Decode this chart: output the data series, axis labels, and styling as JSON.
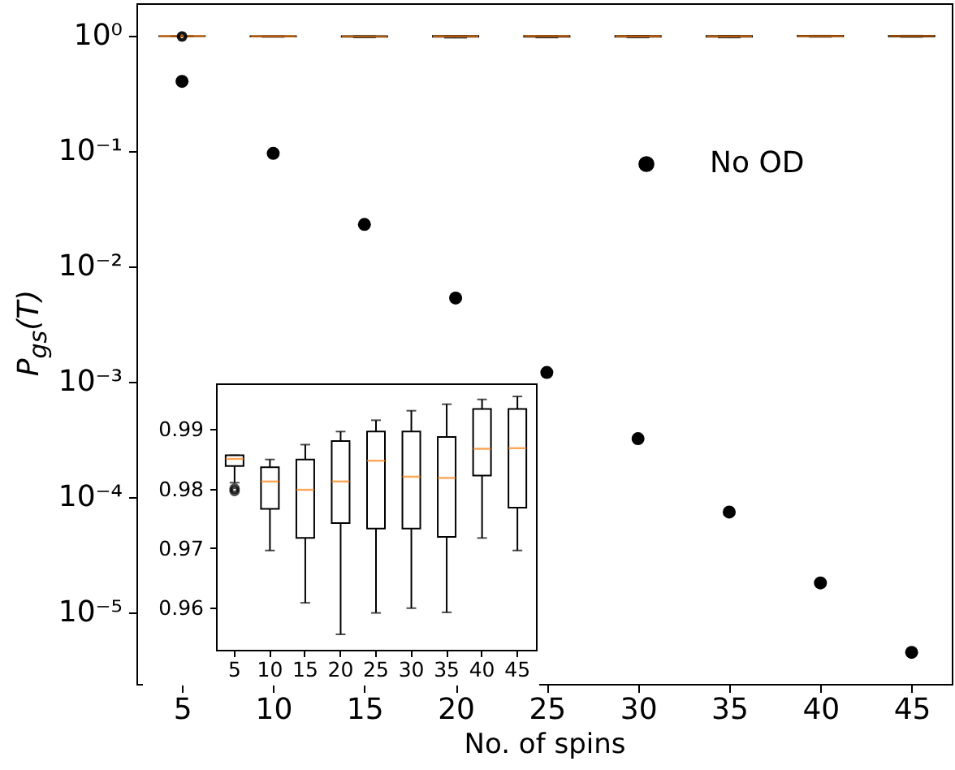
{
  "chart_data": [
    {
      "type": "scatter",
      "xlabel": "No. of spins",
      "ylabel": "P$_{gs}$(T)",
      "log": "y",
      "x": [
        5,
        10,
        15,
        20,
        25,
        30,
        35,
        40,
        45
      ],
      "xlim": [
        2.5,
        47.2
      ],
      "xticks": [
        5,
        10,
        15,
        20,
        25,
        30,
        35,
        40,
        45
      ],
      "ylim": [
        2.4e-06,
        1.9
      ],
      "yticks": [
        {
          "value": 1,
          "label": "10⁰"
        },
        {
          "value": 0.1,
          "label": "10⁻¹"
        },
        {
          "value": 0.01,
          "label": "10⁻²"
        },
        {
          "value": 0.001,
          "label": "10⁻³"
        },
        {
          "value": 0.0001,
          "label": "10⁻⁴"
        },
        {
          "value": 1e-05,
          "label": "10⁻⁵"
        }
      ],
      "legend": "top right",
      "marker": "circle",
      "grid": false,
      "series": [
        {
          "type": "box",
          "color": "#000000",
          "boxes": [
            {
              "low": 0.981,
              "q1": 0.9838,
              "median": 0.985,
              "q3": 0.9856,
              "high": 0.9856,
              "outliers": [
                0.98,
                0.9796
              ]
            },
            {
              "low": 0.9696,
              "q1": 0.9766,
              "median": 0.9812,
              "q3": 0.9836,
              "high": 0.9849
            },
            {
              "low": 0.9608,
              "q1": 0.9717,
              "median": 0.9798,
              "q3": 0.9849,
              "high": 0.9874
            },
            {
              "low": 0.9555,
              "q1": 0.9742,
              "median": 0.9812,
              "q3": 0.988,
              "high": 0.9896
            },
            {
              "low": 0.9591,
              "q1": 0.9733,
              "median": 0.9847,
              "q3": 0.9896,
              "high": 0.9915
            },
            {
              "low": 0.9599,
              "q1": 0.9733,
              "median": 0.982,
              "q3": 0.9896,
              "high": 0.9931
            },
            {
              "low": 0.9592,
              "q1": 0.9719,
              "median": 0.9818,
              "q3": 0.9887,
              "high": 0.9942
            },
            {
              "low": 0.9717,
              "q1": 0.9822,
              "median": 0.9867,
              "q3": 0.9934,
              "high": 0.995
            },
            {
              "low": 0.9696,
              "q1": 0.9768,
              "median": 0.9868,
              "q3": 0.9934,
              "high": 0.9955
            }
          ]
        },
        {
          "name": "No OD",
          "color": "#000000",
          "values": [
            0.4,
            0.095,
            0.023,
            0.0053,
            0.0012,
            0.00032,
            7.4e-05,
            1.8e-05,
            4.5e-06
          ]
        }
      ]
    },
    {
      "type": "box",
      "categories": [
        "5",
        "10",
        "15",
        "20",
        "25",
        "30",
        "35",
        "40",
        "45"
      ],
      "ylim": [
        0.9529,
        0.9977
      ],
      "yticks": [
        0.96,
        0.97,
        0.98,
        0.99
      ],
      "grid": false,
      "boxes": [
        {
          "low": 0.981,
          "q1": 0.9838,
          "median": 0.985,
          "q3": 0.9856,
          "high": 0.9856,
          "outliers": [
            0.98,
            0.9796
          ]
        },
        {
          "low": 0.9696,
          "q1": 0.9766,
          "median": 0.9812,
          "q3": 0.9836,
          "high": 0.9849
        },
        {
          "low": 0.9608,
          "q1": 0.9717,
          "median": 0.9798,
          "q3": 0.9849,
          "high": 0.9874
        },
        {
          "low": 0.9555,
          "q1": 0.9742,
          "median": 0.9812,
          "q3": 0.988,
          "high": 0.9896
        },
        {
          "low": 0.9591,
          "q1": 0.9733,
          "median": 0.9847,
          "q3": 0.9896,
          "high": 0.9915
        },
        {
          "low": 0.9599,
          "q1": 0.9733,
          "median": 0.982,
          "q3": 0.9896,
          "high": 0.9931
        },
        {
          "low": 0.9592,
          "q1": 0.9719,
          "median": 0.9818,
          "q3": 0.9887,
          "high": 0.9942
        },
        {
          "low": 0.9717,
          "q1": 0.9822,
          "median": 0.9867,
          "q3": 0.9934,
          "high": 0.995
        },
        {
          "low": 0.9696,
          "q1": 0.9768,
          "median": 0.9868,
          "q3": 0.9934,
          "high": 0.9955
        }
      ]
    }
  ]
}
